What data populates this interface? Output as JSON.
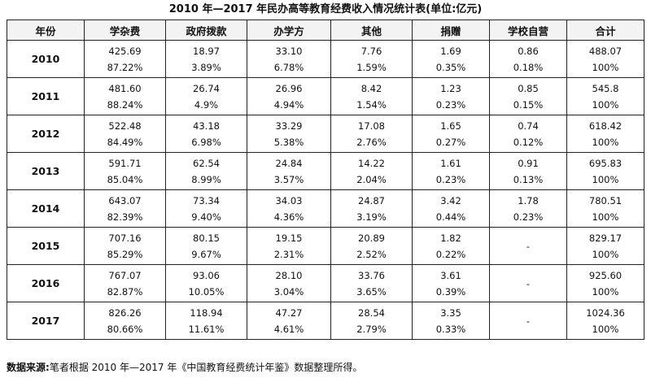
{
  "title": "2010 年—2017 年民办高等教育经费收入情况统计表(单位:亿元)",
  "columns": [
    "年份",
    "学杂费",
    "政府拨款",
    "办学方",
    "其他",
    "捐赠",
    "学校自营",
    "合计"
  ],
  "rows": [
    {
      "year": "2010",
      "cells": [
        [
          "425.69",
          "87.22%"
        ],
        [
          "18.97",
          "3.89%"
        ],
        [
          "33.10",
          "6.78%"
        ],
        [
          "7.76",
          "1.59%"
        ],
        [
          "1.69",
          "0.35%"
        ],
        [
          "0.86",
          "0.18%"
        ],
        [
          "488.07",
          "100%"
        ]
      ]
    },
    {
      "year": "2011",
      "cells": [
        [
          "481.60",
          "88.24%"
        ],
        [
          "26.74",
          "4.9%"
        ],
        [
          "26.96",
          "4.94%"
        ],
        [
          "8.42",
          "1.54%"
        ],
        [
          "1.23",
          "0.23%"
        ],
        [
          "0.85",
          "0.15%"
        ],
        [
          "545.8",
          "100%"
        ]
      ]
    },
    {
      "year": "2012",
      "cells": [
        [
          "522.48",
          "84.49%"
        ],
        [
          "43.18",
          "6.98%"
        ],
        [
          "33.29",
          "5.38%"
        ],
        [
          "17.08",
          "2.76%"
        ],
        [
          "1.65",
          "0.27%"
        ],
        [
          "0.74",
          "0.12%"
        ],
        [
          "618.42",
          "100%"
        ]
      ]
    },
    {
      "year": "2013",
      "cells": [
        [
          "591.71",
          "85.04%"
        ],
        [
          "62.54",
          "8.99%"
        ],
        [
          "24.84",
          "3.57%"
        ],
        [
          "14.22",
          "2.04%"
        ],
        [
          "1.61",
          "0.23%"
        ],
        [
          "0.91",
          "0.13%"
        ],
        [
          "695.83",
          "100%"
        ]
      ]
    },
    {
      "year": "2014",
      "cells": [
        [
          "643.07",
          "82.39%"
        ],
        [
          "73.34",
          "9.40%"
        ],
        [
          "34.03",
          "4.36%"
        ],
        [
          "24.87",
          "3.19%"
        ],
        [
          "3.42",
          "0.44%"
        ],
        [
          "1.78",
          "0.23%"
        ],
        [
          "780.51",
          "100%"
        ]
      ]
    },
    {
      "year": "2015",
      "cells": [
        [
          "707.16",
          "85.29%"
        ],
        [
          "80.15",
          "9.67%"
        ],
        [
          "19.15",
          "2.31%"
        ],
        [
          "20.89",
          "2.52%"
        ],
        [
          "1.82",
          "0.22%"
        ],
        [
          "-"
        ],
        [
          "829.17",
          "100%"
        ]
      ]
    },
    {
      "year": "2016",
      "cells": [
        [
          "767.07",
          "82.87%"
        ],
        [
          "93.06",
          "10.05%"
        ],
        [
          "28.10",
          "3.04%"
        ],
        [
          "33.76",
          "3.65%"
        ],
        [
          "3.61",
          "0.39%"
        ],
        [
          "-"
        ],
        [
          "925.60",
          "100%"
        ]
      ]
    },
    {
      "year": "2017",
      "cells": [
        [
          "826.26",
          "80.66%"
        ],
        [
          "118.94",
          "11.61%"
        ],
        [
          "47.27",
          "4.61%"
        ],
        [
          "28.54",
          "2.79%"
        ],
        [
          "3.35",
          "0.33%"
        ],
        [
          "-"
        ],
        [
          "1024.36",
          "100%"
        ]
      ]
    }
  ],
  "note": {
    "label": "数据来源:",
    "text": "笔者根据 2010 年—2017 年《中国教育经费统计年鉴》数据整理所得。"
  }
}
